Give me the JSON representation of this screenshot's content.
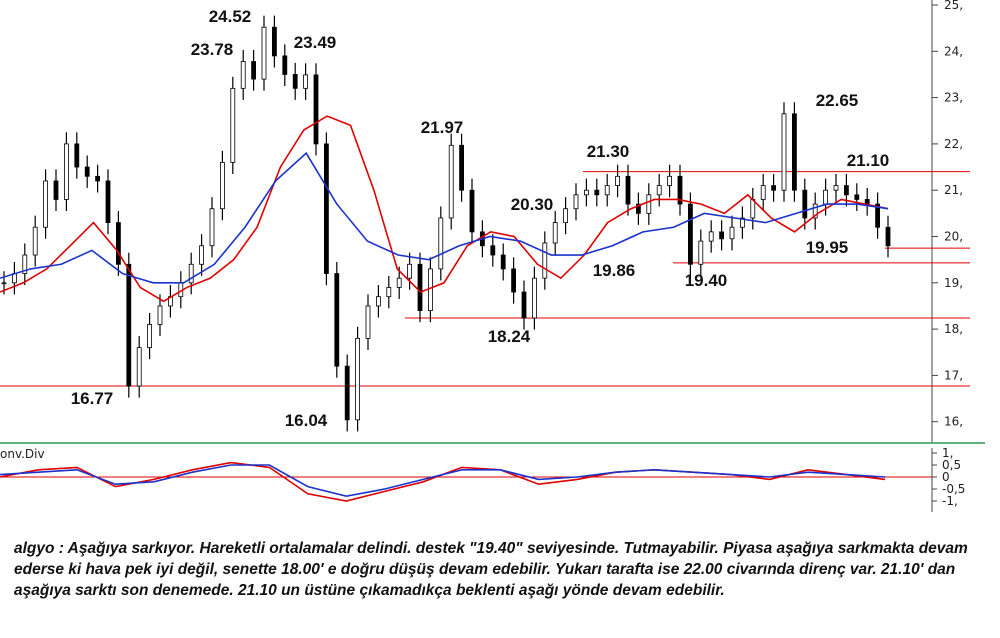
{
  "chart_data": [
    {
      "type": "line",
      "title": "",
      "xlabel": "",
      "ylabel": "",
      "ylim": [
        15.6,
        25.1
      ],
      "yticks": [
        "25,",
        "24,",
        "23,",
        "22,",
        "21,",
        "20,",
        "19,",
        "18,",
        "17,",
        "16,"
      ],
      "series": [
        {
          "name": "",
          "color": "#000000",
          "style": "candles",
          "values": [
            19.0,
            19.2,
            19.6,
            20.2,
            21.2,
            20.8,
            22.0,
            21.5,
            21.3,
            21.2,
            20.3,
            19.4,
            16.77,
            17.6,
            18.1,
            18.5,
            18.7,
            19.0,
            19.4,
            19.8,
            20.6,
            21.6,
            23.2,
            23.78,
            23.4,
            24.52,
            23.9,
            23.5,
            23.2,
            23.49,
            22.0,
            19.2,
            17.2,
            16.04,
            17.8,
            18.5,
            18.7,
            18.9,
            19.1,
            19.4,
            18.4,
            19.3,
            20.4,
            21.97,
            21.0,
            20.1,
            19.8,
            19.6,
            19.3,
            18.8,
            18.24,
            19.1,
            19.86,
            20.3,
            20.6,
            20.9,
            21.0,
            20.9,
            21.1,
            21.3,
            20.7,
            20.5,
            20.9,
            21.1,
            21.3,
            20.7,
            19.4,
            19.9,
            20.1,
            19.95,
            20.2,
            20.4,
            20.8,
            21.1,
            21.0,
            22.65,
            21.0,
            20.4,
            20.7,
            21.0,
            21.1,
            20.9,
            20.8,
            20.7,
            20.2,
            19.8
          ]
        },
        {
          "name": "",
          "color": "#e00000",
          "style": "line",
          "values": [
            18.8,
            19.0,
            19.3,
            19.8,
            20.3,
            19.7,
            18.9,
            18.6,
            18.9,
            19.1,
            19.5,
            20.2,
            21.5,
            22.3,
            22.6,
            22.4,
            21.0,
            19.3,
            18.8,
            19.0,
            19.8,
            20.1,
            20.0,
            19.4,
            19.1,
            19.6,
            20.3,
            20.6,
            20.8,
            20.8,
            20.7,
            20.5,
            20.9,
            20.4,
            20.1,
            20.5,
            20.8,
            20.7,
            20.6
          ]
        },
        {
          "name": "",
          "color": "#1a33cc",
          "style": "line",
          "values": [
            19.1,
            19.3,
            19.4,
            19.7,
            19.2,
            19.0,
            19.0,
            19.4,
            20.2,
            21.2,
            21.8,
            20.7,
            19.9,
            19.6,
            19.5,
            19.8,
            20.0,
            19.9,
            19.6,
            19.6,
            19.8,
            20.1,
            20.2,
            20.5,
            20.4,
            20.3,
            20.5,
            20.7,
            20.7,
            20.6
          ]
        }
      ],
      "annotations": [
        "24.52",
        "23.78",
        "23.49",
        "16.77",
        "16.04",
        "21.97",
        "20.30",
        "18.24",
        "21.30",
        "19.86",
        "19.40",
        "22.65",
        "21.10",
        "19.95"
      ],
      "support_resistance": [
        21.4,
        19.75,
        19.43,
        18.24,
        16.77
      ],
      "grid": false
    },
    {
      "type": "line",
      "title": "onv.Div",
      "ylim": [
        -1.1,
        1.1
      ],
      "yticks": [
        "1,",
        "0,5",
        "0",
        "-0,5",
        "-1,"
      ],
      "zero_line_color": "#e00000",
      "series": [
        {
          "name": "",
          "color": "#e00000",
          "values": [
            0.0,
            0.3,
            0.4,
            -0.4,
            -0.1,
            0.3,
            0.6,
            0.4,
            -0.7,
            -1.0,
            -0.6,
            -0.2,
            0.4,
            0.3,
            -0.3,
            -0.1,
            0.2,
            0.3,
            0.2,
            0.1,
            -0.1,
            0.3,
            0.1,
            -0.1
          ]
        },
        {
          "name": "",
          "color": "#1a33cc",
          "values": [
            0.1,
            0.2,
            0.3,
            -0.3,
            -0.2,
            0.2,
            0.5,
            0.5,
            -0.4,
            -0.8,
            -0.5,
            -0.1,
            0.3,
            0.3,
            -0.1,
            0.0,
            0.2,
            0.3,
            0.2,
            0.1,
            0.0,
            0.2,
            0.1,
            0.0
          ]
        }
      ]
    }
  ],
  "commentary": "algyo : Aşağıya sarkıyor. Hareketli ortalamalar delindi. destek \"19.40\" seviyesinde. Tutmayabilir. Piyasa aşağıya sarkmakta devam ederse ki hava pek iyi değil, senette 18.00' e doğru düşüş devam edebilir. Yukarı tarafta ise 22.00 civarında direnç var. 21.10' dan aşağıya sarktı son denemede. 21.10 un üstüne çıkamadıkça beklenti aşağı yönde devam edebilir."
}
